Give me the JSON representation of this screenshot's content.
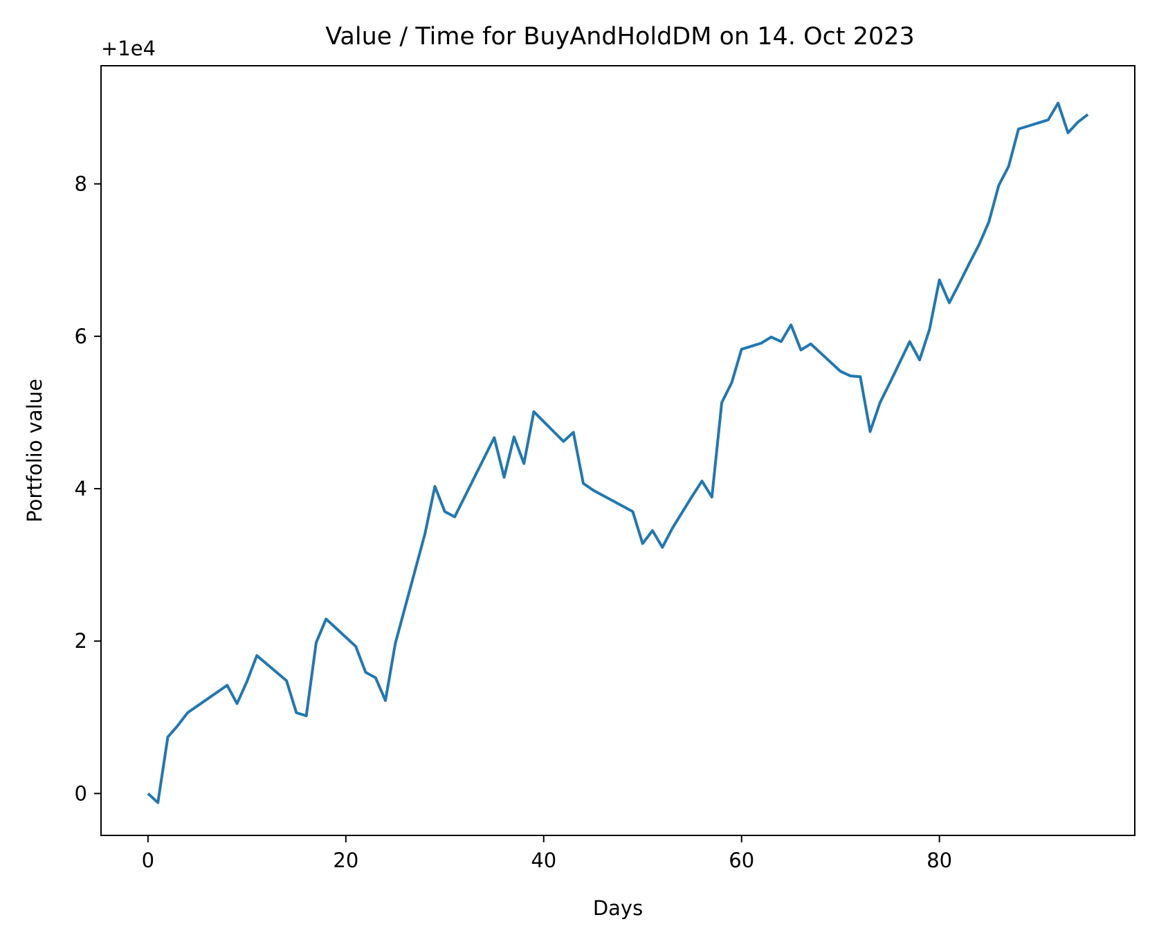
{
  "chart_data": {
    "type": "line",
    "title": "Value / Time for BuyAndHoldDM on 14. Oct 2023",
    "xlabel": "Days",
    "ylabel": "Portfolio value",
    "y_offset_label": "+1e4",
    "xlim": [
      -4.75,
      99.75
    ],
    "ylim": [
      -0.55,
      9.55
    ],
    "x_ticks": [
      0,
      20,
      40,
      60,
      80
    ],
    "y_ticks": [
      0,
      2,
      4,
      6,
      8
    ],
    "grid": false,
    "line_color": "#1f77b4",
    "series": [
      {
        "x": [
          0,
          1,
          2,
          3,
          4,
          5,
          6,
          7,
          8,
          9,
          10,
          11,
          12,
          13,
          14,
          15,
          16,
          17,
          18,
          19,
          20,
          21,
          22,
          23,
          24,
          25,
          26,
          27,
          28,
          29,
          30,
          31,
          32,
          33,
          34,
          35,
          36,
          37,
          38,
          39,
          40,
          41,
          42,
          43,
          44,
          45,
          46,
          47,
          48,
          49,
          50,
          51,
          52,
          53,
          54,
          55,
          56,
          57,
          58,
          59,
          60,
          61,
          62,
          63,
          64,
          65,
          66,
          67,
          68,
          69,
          70,
          71,
          72,
          73,
          74,
          75,
          76,
          77,
          78,
          79,
          80,
          81,
          82,
          83,
          84,
          85,
          86,
          87,
          88,
          89,
          90,
          91,
          92,
          93,
          94,
          95
        ],
        "y": [
          0.0,
          -0.12,
          0.74,
          0.89,
          1.06,
          1.15,
          1.24,
          1.33,
          1.42,
          1.18,
          1.47,
          1.81,
          1.7,
          1.59,
          1.48,
          1.06,
          1.02,
          1.98,
          2.29,
          2.17,
          2.05,
          1.93,
          1.59,
          1.52,
          1.22,
          1.97,
          2.45,
          2.93,
          3.41,
          4.03,
          3.7,
          3.63,
          3.89,
          4.15,
          4.41,
          4.67,
          4.15,
          4.68,
          4.33,
          5.01,
          4.88,
          4.75,
          4.62,
          4.74,
          4.07,
          3.98,
          3.91,
          3.84,
          3.77,
          3.7,
          3.28,
          3.45,
          3.23,
          3.48,
          3.69,
          3.9,
          4.1,
          3.89,
          5.13,
          5.39,
          5.83,
          5.87,
          5.91,
          5.99,
          5.93,
          6.15,
          5.82,
          5.9,
          5.78,
          5.66,
          5.54,
          5.48,
          5.47,
          4.75,
          5.13,
          5.39,
          5.66,
          5.93,
          5.69,
          6.09,
          6.74,
          6.44,
          6.69,
          6.95,
          7.2,
          7.5,
          7.98,
          8.23,
          8.72,
          8.76,
          8.8,
          8.84,
          9.06,
          8.67,
          8.81,
          8.91
        ]
      }
    ]
  }
}
